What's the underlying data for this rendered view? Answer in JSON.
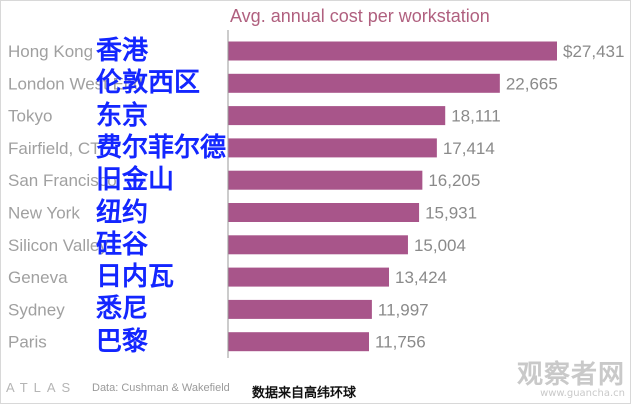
{
  "chart_data": {
    "type": "bar",
    "orientation": "horizontal",
    "title": "Avg. annual cost per workstation",
    "categories": [
      "Hong Kong",
      "London West End",
      "Tokyo",
      "Fairfield, CT",
      "San Francisco",
      "New York",
      "Silicon Valley",
      "Geneva",
      "Sydney",
      "Paris"
    ],
    "values": [
      27431,
      22665,
      18111,
      17414,
      16205,
      15931,
      15004,
      13424,
      11997,
      11756
    ],
    "value_labels": [
      "$27,431",
      "22,665",
      "18,111",
      "17,414",
      "16,205",
      "15,931",
      "15,004",
      "13,424",
      "11,997",
      "11,756"
    ],
    "xlim": [
      0,
      27431
    ],
    "bar_color": "#a8558a",
    "grid": false,
    "legend": "none"
  },
  "overlay_labels": [
    "香港",
    "伦敦西区",
    "东京",
    "费尔菲尔德",
    "旧金山",
    "纽约",
    "硅谷",
    "日内瓦",
    "悉尼",
    "巴黎"
  ],
  "footer": {
    "logo": "ATLAS",
    "source": "Data:  Cushman & Wakefield",
    "overlay_source": "数据来自高纬环球"
  },
  "watermark": {
    "main": "观察者网",
    "site": "www.guancha.cn"
  }
}
